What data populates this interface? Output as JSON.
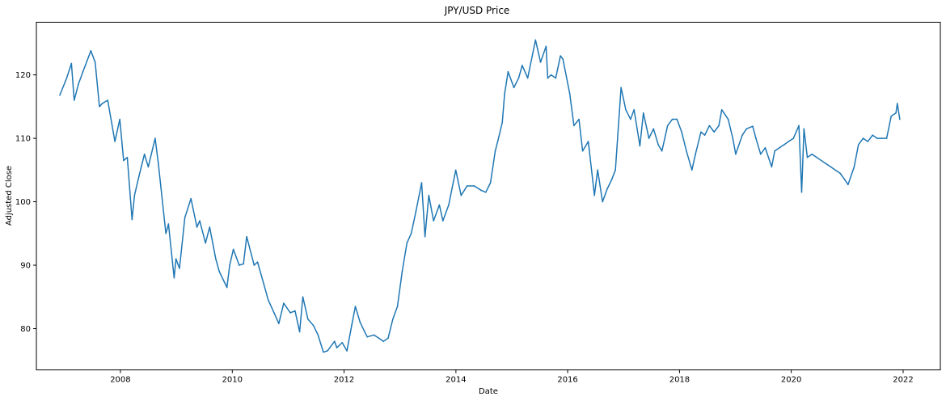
{
  "chart_data": {
    "type": "line",
    "title": "JPY/USD Price",
    "xlabel": "Date",
    "ylabel": "Adjusted Close",
    "xlim": [
      "2006-07-01",
      "2022-09-01"
    ],
    "ylim": [
      73.5,
      128.3
    ],
    "x_ticks": [
      {
        "value": "2008-01-01",
        "label": "2008"
      },
      {
        "value": "2010-01-01",
        "label": "2010"
      },
      {
        "value": "2012-01-01",
        "label": "2012"
      },
      {
        "value": "2014-01-01",
        "label": "2014"
      },
      {
        "value": "2016-01-01",
        "label": "2016"
      },
      {
        "value": "2018-01-01",
        "label": "2018"
      },
      {
        "value": "2020-01-01",
        "label": "2020"
      },
      {
        "value": "2022-01-01",
        "label": "2022"
      }
    ],
    "y_ticks": [
      {
        "value": 80,
        "label": "80"
      },
      {
        "value": 90,
        "label": "90"
      },
      {
        "value": 100,
        "label": "100"
      },
      {
        "value": 110,
        "label": "110"
      },
      {
        "value": 120,
        "label": "120"
      }
    ],
    "grid": false,
    "series": [
      {
        "color": "#1f77b4",
        "x": [
          "2006-12-01",
          "2007-01-15",
          "2007-02-15",
          "2007-03-05",
          "2007-04-01",
          "2007-05-01",
          "2007-06-22",
          "2007-07-20",
          "2007-08-17",
          "2007-09-05",
          "2007-10-10",
          "2007-11-26",
          "2007-12-28",
          "2008-01-22",
          "2008-02-15",
          "2008-03-17",
          "2008-04-02",
          "2008-05-01",
          "2008-06-06",
          "2008-07-01",
          "2008-08-15",
          "2008-09-05",
          "2008-10-24",
          "2008-11-10",
          "2008-12-17",
          "2008-12-29",
          "2009-01-21",
          "2009-02-25",
          "2009-04-06",
          "2009-05-15",
          "2009-06-02",
          "2009-07-10",
          "2009-08-06",
          "2009-09-15",
          "2009-10-08",
          "2009-11-27",
          "2009-12-15",
          "2010-01-08",
          "2010-02-15",
          "2010-03-15",
          "2010-04-05",
          "2010-05-24",
          "2010-06-15",
          "2010-07-26",
          "2010-08-24",
          "2010-10-01",
          "2010-11-01",
          "2010-12-03",
          "2011-01-15",
          "2011-02-15",
          "2011-03-17",
          "2011-04-07",
          "2011-05-10",
          "2011-06-15",
          "2011-07-15",
          "2011-08-19",
          "2011-09-15",
          "2011-10-31",
          "2011-11-15",
          "2011-12-20",
          "2012-01-20",
          "2012-02-20",
          "2012-03-15",
          "2012-04-15",
          "2012-05-15",
          "2012-06-01",
          "2012-07-15",
          "2012-08-15",
          "2012-09-15",
          "2012-10-15",
          "2012-11-15",
          "2012-12-15",
          "2013-01-15",
          "2013-02-15",
          "2013-03-15",
          "2013-04-15",
          "2013-05-22",
          "2013-06-13",
          "2013-07-08",
          "2013-08-08",
          "2013-09-15",
          "2013-10-08",
          "2013-11-15",
          "2013-12-31",
          "2014-02-04",
          "2014-03-15",
          "2014-05-01",
          "2014-06-15",
          "2014-07-15",
          "2014-08-15",
          "2014-09-15",
          "2014-10-01",
          "2014-10-31",
          "2014-11-15",
          "2014-12-08",
          "2015-01-15",
          "2015-02-15",
          "2015-03-10",
          "2015-04-15",
          "2015-06-05",
          "2015-07-08",
          "2015-08-13",
          "2015-08-24",
          "2015-09-15",
          "2015-10-15",
          "2015-11-15",
          "2015-12-01",
          "2016-01-15",
          "2016-02-11",
          "2016-03-15",
          "2016-04-08",
          "2016-05-15",
          "2016-06-24",
          "2016-07-15",
          "2016-08-16",
          "2016-09-15",
          "2016-10-15",
          "2016-11-08",
          "2016-12-15",
          "2017-01-15",
          "2017-02-15",
          "2017-03-10",
          "2017-04-17",
          "2017-05-10",
          "2017-06-15",
          "2017-07-15",
          "2017-08-15",
          "2017-09-08",
          "2017-10-15",
          "2017-11-15",
          "2017-12-15",
          "2018-01-15",
          "2018-02-15",
          "2018-03-23",
          "2018-04-15",
          "2018-05-21",
          "2018-06-15",
          "2018-07-15",
          "2018-08-15",
          "2018-09-15",
          "2018-10-04",
          "2018-11-15",
          "2018-12-15",
          "2019-01-03",
          "2019-02-15",
          "2019-03-15",
          "2019-04-24",
          "2019-05-15",
          "2019-06-15",
          "2019-07-15",
          "2019-08-26",
          "2019-09-15",
          "2019-10-15",
          "2019-11-15",
          "2019-12-15",
          "2020-01-15",
          "2020-02-20",
          "2020-03-09",
          "2020-03-24",
          "2020-04-15",
          "2020-05-15",
          "2020-06-15",
          "2020-07-15",
          "2020-08-15",
          "2020-09-15",
          "2020-10-15",
          "2020-11-15",
          "2020-12-15",
          "2021-01-06",
          "2021-02-15",
          "2021-03-15",
          "2021-04-15",
          "2021-05-15",
          "2021-06-15",
          "2021-07-15",
          "2021-08-15",
          "2021-09-15",
          "2021-10-15",
          "2021-11-15",
          "2021-11-24",
          "2021-12-10"
        ],
        "y": [
          116.8,
          119.5,
          121.8,
          116.0,
          118.5,
          120.5,
          123.8,
          122.0,
          115.0,
          115.5,
          116.0,
          109.5,
          113.0,
          106.5,
          107.0,
          97.2,
          101.0,
          104.0,
          107.5,
          105.5,
          110.0,
          106.0,
          95.0,
          96.5,
          88.0,
          91.0,
          89.5,
          97.5,
          100.5,
          96.0,
          97.0,
          93.5,
          96.0,
          91.0,
          89.0,
          86.5,
          90.0,
          92.5,
          90.0,
          90.2,
          94.5,
          90.0,
          90.5,
          87.0,
          84.5,
          82.5,
          80.8,
          84.0,
          82.5,
          82.8,
          79.5,
          85.0,
          81.5,
          80.5,
          79.0,
          76.3,
          76.5,
          78.0,
          77.0,
          77.8,
          76.5,
          80.5,
          83.5,
          81.0,
          79.5,
          78.7,
          79.0,
          78.5,
          78.0,
          78.5,
          81.5,
          83.5,
          89.0,
          93.5,
          95.0,
          98.5,
          103.0,
          94.5,
          101.0,
          97.0,
          99.5,
          97.0,
          99.5,
          105.0,
          101.0,
          102.5,
          102.5,
          101.8,
          101.5,
          103.0,
          108.0,
          109.5,
          112.5,
          117.0,
          120.5,
          118.0,
          119.5,
          121.5,
          119.5,
          125.5,
          122.0,
          124.5,
          119.5,
          120.0,
          119.5,
          123.0,
          122.5,
          117.0,
          112.0,
          113.0,
          108.0,
          109.5,
          101.0,
          105.0,
          100.0,
          102.0,
          103.5,
          105.0,
          118.0,
          114.5,
          113.0,
          114.5,
          108.8,
          114.0,
          110.0,
          111.5,
          109.0,
          108.0,
          112.0,
          113.0,
          113.0,
          111.0,
          108.0,
          105.0,
          107.5,
          111.0,
          110.5,
          112.0,
          111.0,
          112.0,
          114.5,
          113.0,
          110.0,
          107.5,
          110.5,
          111.5,
          111.9,
          110.0,
          107.5,
          108.5,
          105.5,
          108.0,
          108.5,
          109.0,
          109.5,
          110.0,
          112.0,
          101.5,
          111.5,
          107.0,
          107.5,
          107.0,
          106.5,
          106.0,
          105.5,
          105.0,
          104.5,
          103.5,
          102.7,
          105.5,
          109.0,
          110.0,
          109.5,
          110.5,
          110.0,
          110.0,
          110.0,
          113.5,
          114.0,
          115.5,
          113.0
        ]
      }
    ]
  }
}
